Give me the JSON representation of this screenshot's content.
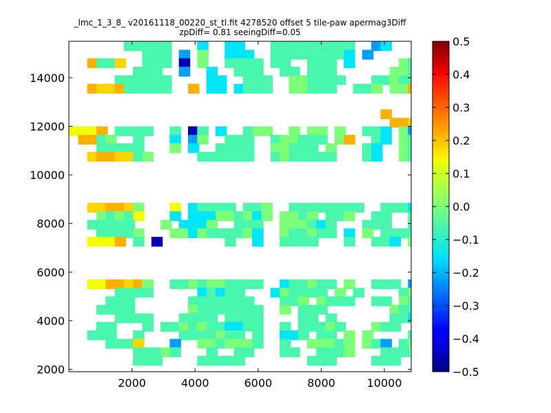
{
  "chart_data": {
    "type": "heatmap",
    "title_lines": [
      "_lmc_1_3_8_ v20161118_00220_st_tl.fit 4278520 offset 5 tile-paw apermag3Diff",
      "zpDiff= 0.81 seeingDiff=0.05"
    ],
    "xlabel": "",
    "ylabel": "",
    "xlim": [
      0,
      10850
    ],
    "ylim": [
      1900,
      15500
    ],
    "x_ticks": [
      2000,
      4000,
      6000,
      8000,
      10000
    ],
    "y_ticks": [
      2000,
      4000,
      6000,
      8000,
      10000,
      12000,
      14000
    ],
    "x_tick_labels": [
      "2000",
      "4000",
      "6000",
      "8000",
      "10000"
    ],
    "y_tick_labels": [
      "2000",
      "4000",
      "6000",
      "8000",
      "10000",
      "12000",
      "14000"
    ],
    "colormap": "jet",
    "clim": [
      -0.5,
      0.5
    ],
    "colorbar_ticks": [
      0.5,
      0.4,
      0.3,
      0.2,
      0.1,
      0.0,
      -0.1,
      -0.2,
      -0.3,
      -0.4,
      -0.5
    ],
    "colorbar_tick_labels": [
      "0.5",
      "0.4",
      "0.3",
      "0.2",
      "0.1",
      "0.0",
      "−0.1",
      "−0.2",
      "−0.3",
      "−0.4",
      "−0.5"
    ],
    "grid": false,
    "cell_size": 350,
    "columns_x_start": 0,
    "rows_y_start": 1900,
    "grid_rows": [
      "      -----   .  ..   ---------  *.   ",
      "        --- * =  ...  --------. *      ",
      "  @--)  --- & =  ---- --  --- .     =-",
      "       ---  *  .  ---  -- ---      ==-",
      "     ------    ..  ---  ==----   --=--",
      "  @))@-----  @ .. .---  ==---  --= ==@",
      "                                      ",
      "                                      ",
      "                                  @   ",
      "                                   @@)",
      "(((@ ----  - &- .  -==  = == =  --. =*",
      " @@-=  -   . *=  ---  -==--- =@  -. =-",
      "   -----   = .  ----  ==--- =   -.  =-",
      "  )@@))-=     ------  -=-----   -.  =-",
      "                                      ",
      "                                      ",
      "                                      ",
      "                                      ",
      "                                      ",
      "  ))@@)=   ( .---- --=  --------  ---.",
      "   =-=-(   . ...==-=.= ==-= --=  --  -",
      "  -----   = ...=  ---  ===-.-   ---  -",
      "   ----=   ==.=----=.  =--=-- . = ----",
      "  (((@ - &       -  .  ----   -  --. =",
      "                                      ",
      "                                      ",
      "                                      ",
      "                                      ",
      "  ((@@)@=  --=-==----  .--=-- =  --- *",
      "     ----     .-.--   .=---- = -    -=",
      "    ---      -------   --= =---  -- =-",
      "   ----      =-------  = ---       =--",
      "     ----   ---- ----    -- -      --.",
      "   --   - --=-=--..--  - ---=-   =--  ",
      "  ---  -    ----=-- -  ..- -- = =    -",
      "    ---)   *  ==-===-  -  ===-= =-* -=",
      "       ---=-   -  --   --  ---=   ---",
      "       ---    -----       ---    ---  "
    ],
    "cells": [
      {
        "x": 0,
        "y": 15150,
        "v": 0.25
      },
      {
        "x": 700,
        "y": 15150,
        "v": 0.12
      },
      {
        "x": 1050,
        "y": 15150,
        "v": 0.0
      },
      {
        "x": 1400,
        "y": 15150,
        "v": -0.02
      },
      {
        "x": 1750,
        "y": 15150,
        "v": 0.08
      },
      {
        "x": 2100,
        "y": 15150,
        "v": 0.0
      },
      {
        "x": 2800,
        "y": 15150,
        "v": -0.08
      },
      {
        "x": 3150,
        "y": 15150,
        "v": -0.12
      },
      {
        "x": 3500,
        "y": 15150,
        "v": -0.15
      },
      {
        "x": 3850,
        "y": 15150,
        "v": -0.12
      },
      {
        "x": 4200,
        "y": 15150,
        "v": -0.05
      },
      {
        "x": 4550,
        "y": 15150,
        "v": -0.08
      },
      {
        "x": 4900,
        "y": 15150,
        "v": -0.05
      },
      {
        "x": 5600,
        "y": 15150,
        "v": 0.08
      },
      {
        "x": 5950,
        "y": 15150,
        "v": -0.05
      },
      {
        "x": 6300,
        "y": 15150,
        "v": -0.08
      },
      {
        "x": 6650,
        "y": 15150,
        "v": -0.05
      },
      {
        "x": 7000,
        "y": 15150,
        "v": -0.02
      },
      {
        "x": 7350,
        "y": 15150,
        "v": -0.05
      },
      {
        "x": 7700,
        "y": 15150,
        "v": -0.08
      },
      {
        "x": 8050,
        "y": 15150,
        "v": -0.08
      },
      {
        "x": 8400,
        "y": 15150,
        "v": -0.05
      },
      {
        "x": 8750,
        "y": 15150,
        "v": 0.0
      },
      {
        "x": 9100,
        "y": 15150,
        "v": -0.22
      },
      {
        "x": 9450,
        "y": 15150,
        "v": -0.18
      },
      {
        "x": 9800,
        "y": 15150,
        "v": 0.12
      },
      {
        "x": 10150,
        "y": 15150,
        "v": -0.15
      },
      {
        "x": 10500,
        "y": 15150,
        "v": -0.05
      }
    ]
  }
}
